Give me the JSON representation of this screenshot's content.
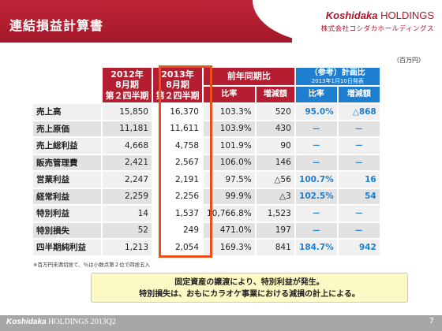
{
  "slide": {
    "title": "連結損益計算書",
    "page_number": "7",
    "unit_note": "（百万円）",
    "footnote": "※百万円未満切捨て、％は小数点第２位で四捨五入"
  },
  "brand": {
    "name_italic": "Koshidaka",
    "name_suffix": " HOLDINGS",
    "sub": "株式会社コシダカホールディングス",
    "footer_italic": "Koshidaka",
    "footer_suffix": " HOLDINGS 2013Q2"
  },
  "table": {
    "headers": {
      "prev_period": [
        "2012年",
        "8月期",
        "第２四半期"
      ],
      "cur_period": [
        "2013年",
        "8月期",
        "第２四半期"
      ],
      "yoy": "前年同期比",
      "yoy_ratio": "比率",
      "yoy_diff": "増減額",
      "plan": "（参考）計画比",
      "plan_note": "2013年1月10日発表",
      "plan_ratio": "比率",
      "plan_diff": "増減額"
    },
    "rows": [
      {
        "label": "売上高",
        "prev": "15,850",
        "cur": "16,370",
        "ratio": "103.3%",
        "diff": "520",
        "plan_ratio": "95.0%",
        "plan_diff": "△868"
      },
      {
        "label": "売上原価",
        "prev": "11,181",
        "cur": "11,611",
        "ratio": "103.9%",
        "diff": "430",
        "plan_ratio": "－",
        "plan_diff": "－"
      },
      {
        "label": "売上総利益",
        "prev": "4,668",
        "cur": "4,758",
        "ratio": "101.9%",
        "diff": "90",
        "plan_ratio": "－",
        "plan_diff": "－"
      },
      {
        "label": "販売管理費",
        "prev": "2,421",
        "cur": "2,567",
        "ratio": "106.0%",
        "diff": "146",
        "plan_ratio": "－",
        "plan_diff": "－"
      },
      {
        "label": "営業利益",
        "prev": "2,247",
        "cur": "2,191",
        "ratio": "97.5%",
        "diff": "△56",
        "plan_ratio": "100.7%",
        "plan_diff": "16"
      },
      {
        "label": "経常利益",
        "prev": "2,259",
        "cur": "2,256",
        "ratio": "99.9%",
        "diff": "△3",
        "plan_ratio": "102.5%",
        "plan_diff": "54"
      },
      {
        "label": "特別利益",
        "prev": "14",
        "cur": "1,537",
        "ratio": "10,766.8%",
        "diff": "1,523",
        "plan_ratio": "－",
        "plan_diff": "－"
      },
      {
        "label": "特別損失",
        "prev": "52",
        "cur": "249",
        "ratio": "471.0%",
        "diff": "197",
        "plan_ratio": "－",
        "plan_diff": "－"
      },
      {
        "label": "四半期純利益",
        "prev": "1,213",
        "cur": "2,054",
        "ratio": "169.3%",
        "diff": "841",
        "plan_ratio": "184.7%",
        "plan_diff": "942"
      }
    ]
  },
  "callout": {
    "line1": "固定資産の譲渡により、特別利益が発生。",
    "line2": "特別損失は、おもにカラオケ事業における減損の計上による。"
  },
  "colors": {
    "header_red": "#b51d30",
    "ref_blue": "#1e7fd0",
    "highlight_orange": "#e8521a",
    "callout_yellow": "#fdf9c4"
  }
}
